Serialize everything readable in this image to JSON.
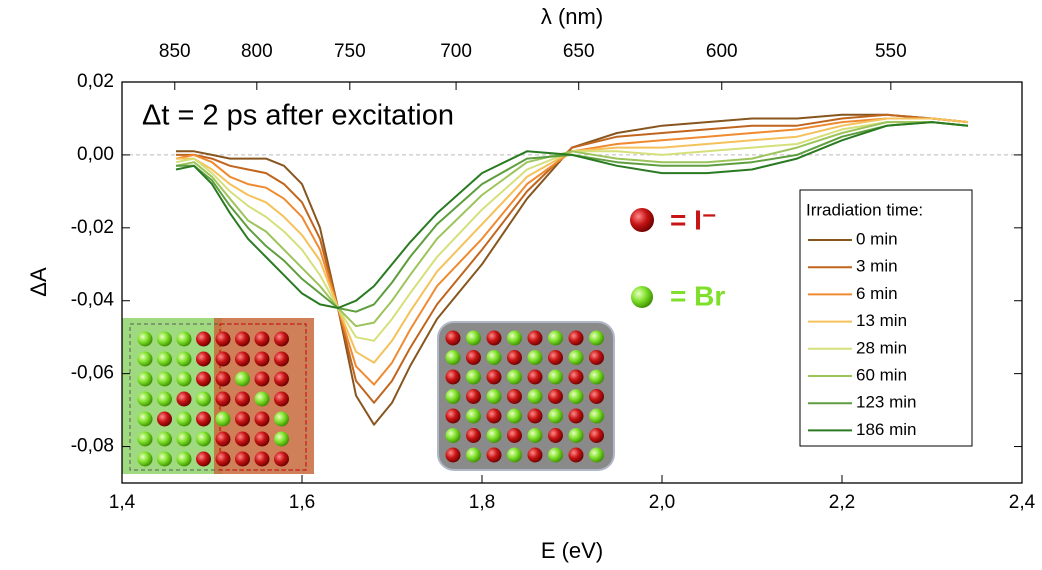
{
  "chart_data": {
    "type": "line",
    "x_label": "E (eV)",
    "y_label": "ΔA",
    "x2_label": "λ (nm)",
    "annotation": "Δt = 2 ps after excitation",
    "legend_title": "Irradiation time:",
    "ion_labels": [
      "= I⁻",
      "= Br"
    ],
    "x": [
      1.46,
      1.48,
      1.5,
      1.52,
      1.54,
      1.56,
      1.58,
      1.6,
      1.62,
      1.64,
      1.66,
      1.68,
      1.7,
      1.72,
      1.75,
      1.8,
      1.85,
      1.9,
      1.95,
      2.0,
      2.05,
      2.1,
      2.15,
      2.2,
      2.25,
      2.3,
      2.34
    ],
    "series": [
      {
        "name": "0 min",
        "color": "#87561f",
        "values": [
          0.001,
          0.001,
          0,
          -0.001,
          -0.001,
          -0.001,
          -0.003,
          -0.008,
          -0.02,
          -0.042,
          -0.066,
          -0.074,
          -0.068,
          -0.058,
          -0.045,
          -0.03,
          -0.012,
          0.002,
          0.006,
          0.008,
          0.009,
          0.01,
          0.01,
          0.011,
          0.011,
          0.01,
          0.009
        ]
      },
      {
        "name": "3 min",
        "color": "#c0651e",
        "values": [
          0.0,
          0.0,
          -0.001,
          -0.003,
          -0.004,
          -0.005,
          -0.008,
          -0.013,
          -0.023,
          -0.042,
          -0.062,
          -0.068,
          -0.062,
          -0.053,
          -0.041,
          -0.026,
          -0.01,
          0.002,
          0.005,
          0.006,
          0.007,
          0.008,
          0.008,
          0.01,
          0.011,
          0.01,
          0.009
        ]
      },
      {
        "name": "6 min",
        "color": "#f08a30",
        "values": [
          -0.001,
          0.0,
          -0.002,
          -0.006,
          -0.008,
          -0.009,
          -0.012,
          -0.017,
          -0.026,
          -0.042,
          -0.058,
          -0.063,
          -0.057,
          -0.048,
          -0.036,
          -0.023,
          -0.008,
          0.001,
          0.003,
          0.004,
          0.005,
          0.006,
          0.007,
          0.009,
          0.01,
          0.01,
          0.009
        ]
      },
      {
        "name": "13 min",
        "color": "#f5c15a",
        "values": [
          -0.001,
          -0.001,
          -0.004,
          -0.008,
          -0.011,
          -0.013,
          -0.017,
          -0.022,
          -0.029,
          -0.042,
          -0.054,
          -0.057,
          -0.051,
          -0.043,
          -0.032,
          -0.019,
          -0.006,
          0.001,
          0.002,
          0.002,
          0.003,
          0.004,
          0.005,
          0.008,
          0.01,
          0.01,
          0.009
        ]
      },
      {
        "name": "28 min",
        "color": "#d6e07a",
        "values": [
          -0.002,
          -0.001,
          -0.005,
          -0.01,
          -0.014,
          -0.017,
          -0.021,
          -0.026,
          -0.033,
          -0.042,
          -0.05,
          -0.051,
          -0.045,
          -0.038,
          -0.028,
          -0.015,
          -0.004,
          0.001,
          0.001,
          0.0,
          0.001,
          0.002,
          0.003,
          0.007,
          0.009,
          0.009,
          0.008
        ]
      },
      {
        "name": "60 min",
        "color": "#9cc45a",
        "values": [
          -0.003,
          -0.002,
          -0.006,
          -0.012,
          -0.018,
          -0.021,
          -0.026,
          -0.031,
          -0.036,
          -0.042,
          -0.047,
          -0.046,
          -0.04,
          -0.033,
          -0.023,
          -0.011,
          -0.002,
          0.001,
          -0.001,
          -0.002,
          -0.002,
          -0.001,
          0.002,
          0.006,
          0.009,
          0.009,
          0.008
        ]
      },
      {
        "name": "123 min",
        "color": "#5e9e3e",
        "values": [
          -0.003,
          -0.003,
          -0.007,
          -0.014,
          -0.02,
          -0.025,
          -0.029,
          -0.034,
          -0.038,
          -0.042,
          -0.043,
          -0.041,
          -0.035,
          -0.028,
          -0.019,
          -0.008,
          -0.001,
          0.0,
          -0.002,
          -0.003,
          -0.003,
          -0.002,
          0.0,
          0.005,
          0.008,
          0.009,
          0.008
        ]
      },
      {
        "name": "186 min",
        "color": "#2a7a22",
        "values": [
          -0.004,
          -0.003,
          -0.008,
          -0.016,
          -0.023,
          -0.028,
          -0.033,
          -0.038,
          -0.041,
          -0.042,
          -0.04,
          -0.036,
          -0.03,
          -0.024,
          -0.016,
          -0.005,
          0.001,
          0.0,
          -0.003,
          -0.005,
          -0.005,
          -0.004,
          -0.001,
          0.004,
          0.008,
          0.009,
          0.008
        ]
      }
    ],
    "xlim": [
      1.4,
      2.4
    ],
    "xticks": [
      {
        "value": 1.4,
        "label": "1,4"
      },
      {
        "value": 1.6,
        "label": "1,6"
      },
      {
        "value": 1.8,
        "label": "1,8"
      },
      {
        "value": 2.0,
        "label": "2,0"
      },
      {
        "value": 2.2,
        "label": "2,2"
      },
      {
        "value": 2.4,
        "label": "2,4"
      }
    ],
    "ylim": [
      -0.09,
      0.02
    ],
    "yticks": [
      {
        "value": -0.08,
        "label": "-0,08"
      },
      {
        "value": -0.06,
        "label": "-0,06"
      },
      {
        "value": -0.04,
        "label": "-0,04"
      },
      {
        "value": -0.02,
        "label": "-0,02"
      },
      {
        "value": 0,
        "label": "0,00"
      },
      {
        "value": 0.02,
        "label": "0,02"
      }
    ],
    "x2lim": [
      885.6,
      516.6
    ],
    "x2scale": "reciprocal",
    "x2ticks": [
      850,
      800,
      750,
      700,
      650,
      600,
      550
    ],
    "zero_line": true,
    "legend": "right"
  }
}
